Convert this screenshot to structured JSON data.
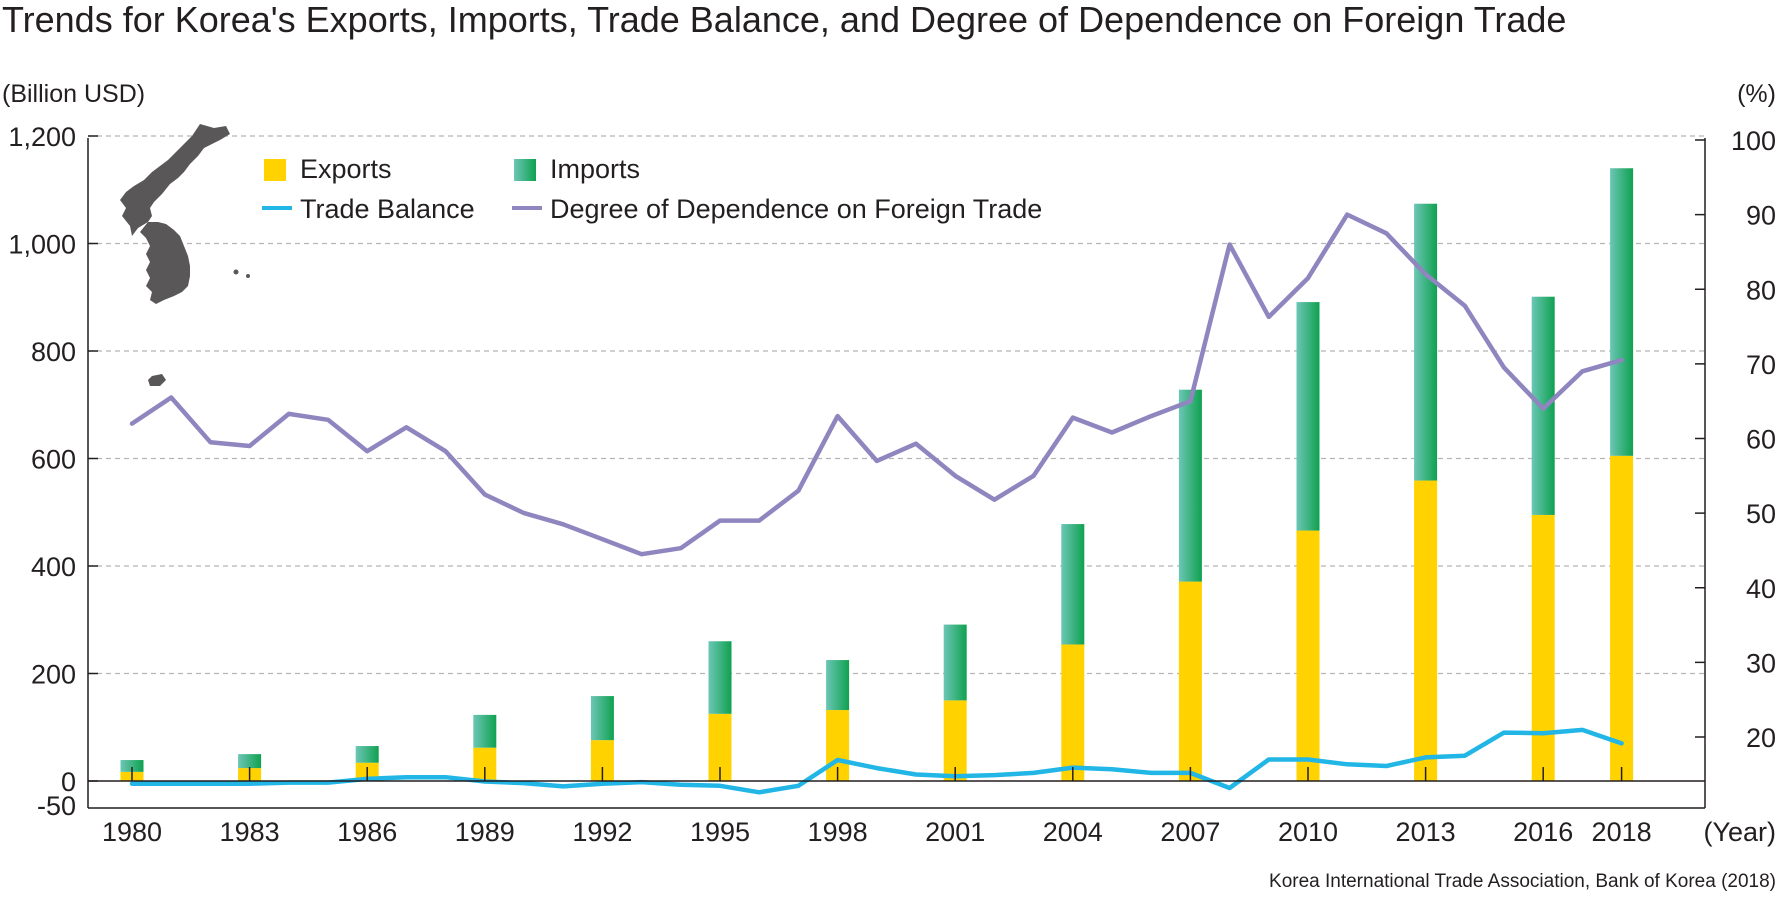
{
  "chart_data": {
    "type": "bar",
    "title": "Trends for Korea's Exports, Imports, Trade Balance, and Degree of Dependence on Foreign Trade",
    "left_unit": "(Billion USD)",
    "right_unit": "(%)",
    "xlabel": "(Year)",
    "source": "Korea International Trade Association, Bank of Korea (2018)",
    "left_axis": {
      "ylim": [
        -50,
        1200
      ],
      "tick_values": [
        0,
        200,
        400,
        600,
        800,
        1000,
        1200
      ],
      "tick_labels": [
        "0",
        "200",
        "400",
        "600",
        "800",
        "1,000",
        "1,200"
      ],
      "extra_tick_label": "-50"
    },
    "right_axis": {
      "ylim": [
        13,
        100
      ],
      "tick_values": [
        20,
        30,
        40,
        50,
        60,
        70,
        80,
        90,
        100
      ],
      "tick_labels": [
        "20",
        "30",
        "40",
        "50",
        "60",
        "70",
        "80",
        "90",
        "100"
      ]
    },
    "x_tick_labels": [
      "1980",
      "1983",
      "1986",
      "1989",
      "1992",
      "1995",
      "1998",
      "2001",
      "2004",
      "2007",
      "2010",
      "2013",
      "2016",
      "2018"
    ],
    "grid": true,
    "legend_placement": "top-left",
    "colors": {
      "exports": "#ffd200",
      "imports_top": "#0fa14f",
      "imports_light": "#6cc6b6",
      "trade_balance": "#21b6e6",
      "dependence": "#8f86c0",
      "axis": "#231f20",
      "grid": "#b5b5b5"
    },
    "legend": [
      {
        "label": "Exports",
        "kind": "bar-exports"
      },
      {
        "label": "Imports",
        "kind": "bar-imports"
      },
      {
        "label": "Trade Balance",
        "kind": "line-balance"
      },
      {
        "label": "Degree of Dependence on Foreign Trade",
        "kind": "line-dependence"
      }
    ],
    "bar_years": [
      "1980",
      "1983",
      "1986",
      "1989",
      "1992",
      "1995",
      "1998",
      "2001",
      "2004",
      "2007",
      "2010",
      "2013",
      "2016",
      "2018"
    ],
    "series": [
      {
        "name": "Exports",
        "axis": "left",
        "values": [
          17,
          24,
          34,
          62,
          76,
          125,
          132,
          150,
          254,
          371,
          466,
          559,
          495,
          605
        ]
      },
      {
        "name": "Imports",
        "axis": "left",
        "values": [
          22,
          26,
          31,
          61,
          82,
          135,
          93,
          141,
          224,
          357,
          425,
          515,
          406,
          535
        ]
      },
      {
        "name": "Trade Balance",
        "axis": "left",
        "x": [
          1980,
          1981,
          1982,
          1983,
          1984,
          1985,
          1986,
          1987,
          1988,
          1989,
          1990,
          1991,
          1992,
          1993,
          1994,
          1995,
          1996,
          1997,
          1998,
          1999,
          2000,
          2001,
          2002,
          2003,
          2004,
          2005,
          2006,
          2007,
          2008,
          2009,
          2010,
          2011,
          2012,
          2013,
          2014,
          2015,
          2016,
          2017,
          2018
        ],
        "values": [
          -5,
          -5,
          -5,
          -5,
          -3,
          -3,
          4,
          7,
          7,
          -1,
          -4,
          -10,
          -5,
          -2,
          -7,
          -9,
          -21,
          -9,
          39,
          24,
          12,
          9,
          11,
          15,
          25,
          22,
          15,
          15,
          -13,
          40,
          40,
          31,
          28,
          44,
          47,
          90,
          89,
          95,
          70
        ]
      },
      {
        "name": "Degree of Dependence on Foreign Trade",
        "axis": "right",
        "x": [
          1980,
          1981,
          1982,
          1983,
          1984,
          1985,
          1986,
          1987,
          1988,
          1989,
          1990,
          1991,
          1992,
          1993,
          1994,
          1995,
          1996,
          1997,
          1998,
          1999,
          2000,
          2001,
          2002,
          2003,
          2004,
          2005,
          2006,
          2007,
          2008,
          2009,
          2010,
          2011,
          2012,
          2013,
          2014,
          2015,
          2016,
          2017,
          2018
        ],
        "values": [
          62,
          65.5,
          59.5,
          59,
          63.3,
          62.5,
          58.3,
          61.5,
          58.3,
          52.5,
          50,
          48.5,
          46.5,
          44.5,
          45.3,
          49,
          49,
          53,
          63,
          57,
          59.3,
          55,
          51.8,
          55,
          62.8,
          60.8,
          63,
          65,
          86,
          76.3,
          81.5,
          90,
          87.5,
          82,
          77.8,
          69.5,
          64,
          69,
          70.5
        ]
      }
    ]
  }
}
